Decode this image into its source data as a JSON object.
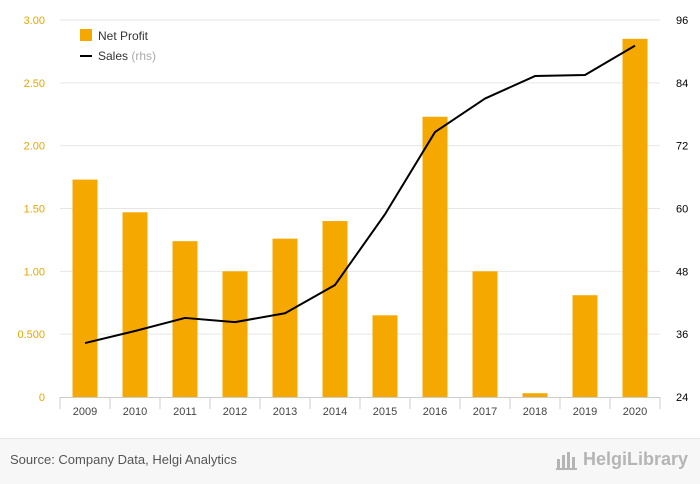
{
  "chart_data": {
    "type": "bar",
    "categories": [
      "2009",
      "2010",
      "2011",
      "2012",
      "2013",
      "2014",
      "2015",
      "2016",
      "2017",
      "2018",
      "2019",
      "2020"
    ],
    "series": [
      {
        "name": "Net Profit",
        "kind": "bar",
        "axis": "left",
        "color": "#f5a900",
        "values": [
          1.73,
          1.47,
          1.24,
          1.0,
          1.26,
          1.4,
          0.65,
          2.23,
          1.0,
          0.03,
          0.81,
          2.85
        ]
      },
      {
        "name": "Sales",
        "legend_suffix": "(rhs)",
        "kind": "line",
        "axis": "right",
        "color": "#000000",
        "values": [
          34.3,
          36.6,
          39.1,
          38.3,
          40.0,
          45.4,
          58.9,
          74.6,
          81.0,
          85.3,
          85.5,
          91.1
        ]
      }
    ],
    "y_left": {
      "ylim": [
        0,
        3.0
      ],
      "ticks": [
        0,
        0.5,
        1.0,
        1.5,
        2.0,
        2.5,
        3.0
      ],
      "tick_labels": [
        "0",
        "0.500",
        "1.00",
        "1.50",
        "2.00",
        "2.50",
        "3.00"
      ],
      "label_color": "#e6a500"
    },
    "y_right": {
      "ylim": [
        24,
        96
      ],
      "ticks": [
        24,
        36,
        48,
        60,
        72,
        84,
        96
      ],
      "tick_labels": [
        "24",
        "36",
        "48",
        "60",
        "72",
        "84",
        "96"
      ],
      "label_color": "#000000"
    },
    "grid": true,
    "legend_position": "top-left"
  },
  "footer": {
    "source": "Source: Company Data, Helgi Analytics",
    "brand": "HelgiLibrary",
    "brand_icon": "bar-chart-logo-icon"
  }
}
